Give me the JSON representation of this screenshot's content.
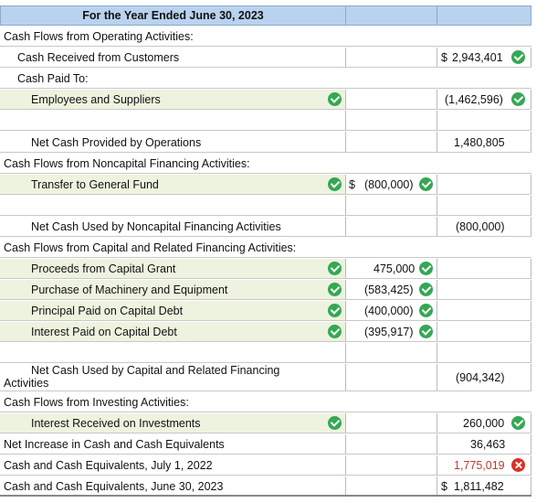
{
  "statement": {
    "header_title": "For the Year Ended June 30, 2023",
    "operating": {
      "section_label": "Cash Flows from Operating Activities:",
      "received_label": "Cash Received from Customers",
      "received_value": "2,943,401",
      "paid_to_label": "Cash Paid To:",
      "employees_label": "Employees and Suppliers",
      "employees_value": "(1,462,596)",
      "net_label": "Net Cash Provided by Operations",
      "net_value": "1,480,805"
    },
    "noncapital": {
      "section_label": "Cash Flows from Noncapital Financing Activities:",
      "transfer_label": "Transfer to General Fund",
      "transfer_value": "(800,000)",
      "net_label": "Net Cash Used by Noncapital Financing Activities",
      "net_value": "(800,000)"
    },
    "capital": {
      "section_label": "Cash Flows from Capital and Related Financing Activities:",
      "items": [
        {
          "label": "Proceeds from Capital Grant",
          "value": "475,000"
        },
        {
          "label": "Purchase of Machinery and Equipment",
          "value": "(583,425)"
        },
        {
          "label": "Principal Paid on Capital Debt",
          "value": "(400,000)"
        },
        {
          "label": "Interest Paid on Capital Debt",
          "value": "(395,917)"
        }
      ],
      "net_label_line1": "Net Cash Used by Capital and Related Financing",
      "net_label_line2": "Activities",
      "net_value": "(904,342)"
    },
    "investing": {
      "section_label": "Cash Flows from Investing Activities:",
      "interest_label": "Interest Received on Investments",
      "interest_value": "260,000"
    },
    "totals": {
      "net_increase_label": "Net Increase in Cash and Cash Equivalents",
      "net_increase_value": "36,463",
      "beginning_label": "Cash and Cash Equivalents, July 1, 2022",
      "beginning_value": "1,775,019",
      "ending_label": "Cash and Cash Equivalents, June 30, 2023",
      "ending_value": "1,811,482"
    },
    "currency_symbol": "$"
  },
  "colors": {
    "header_bg": "#b9d2ee",
    "row_highlight": "#eef3df",
    "check_green": "#34a853",
    "error_red": "#d93025"
  },
  "icons": {
    "correct": "check-circle-icon",
    "incorrect": "x-circle-icon"
  }
}
